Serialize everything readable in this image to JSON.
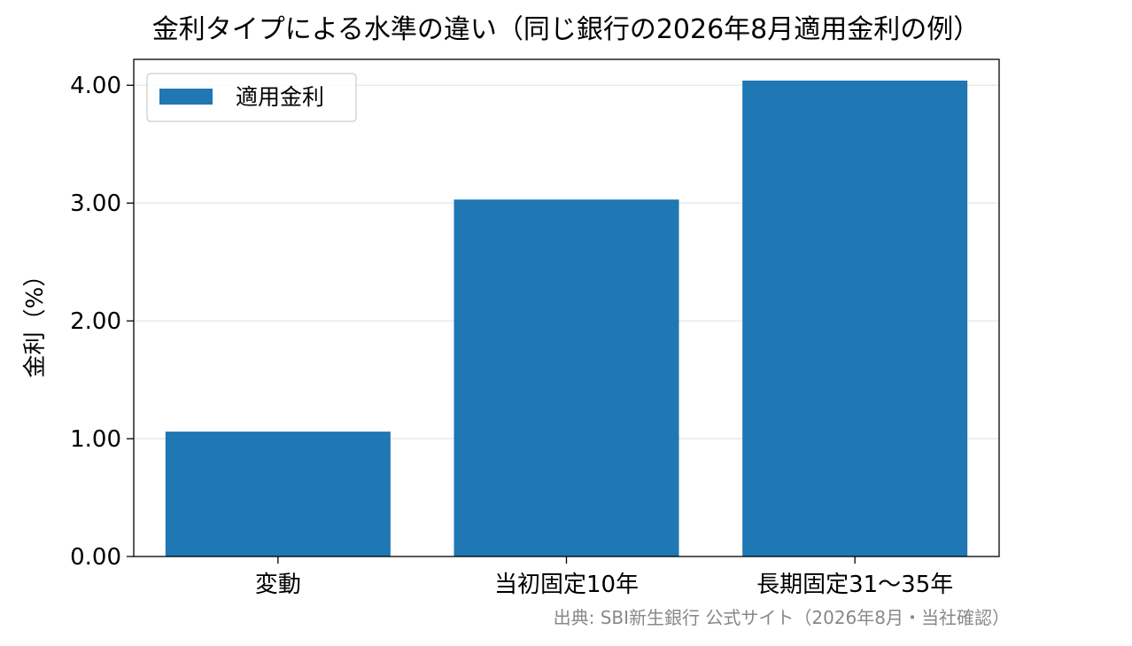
{
  "chart_data": {
    "type": "bar",
    "title": "金利タイプによる水準の違い（同じ銀行の2026年8月適用金利の例）",
    "xlabel": "",
    "ylabel": "金利（%）",
    "categories": [
      "変動",
      "当初固定10年",
      "長期固定31〜35年"
    ],
    "series": [
      {
        "name": "適用金利",
        "values": [
          1.06,
          3.03,
          4.04
        ],
        "color": "#1f77b4"
      }
    ],
    "ylim": [
      0,
      4.22
    ],
    "yticks": [
      0,
      1,
      2,
      3,
      4
    ],
    "ytick_labels": [
      "0.00",
      "1.00",
      "2.00",
      "3.00",
      "4.00"
    ],
    "grid": "y",
    "legend_position": "top-left",
    "source_note": "出典: SBI新生銀行 公式サイト（2026年8月・当社確認）"
  }
}
